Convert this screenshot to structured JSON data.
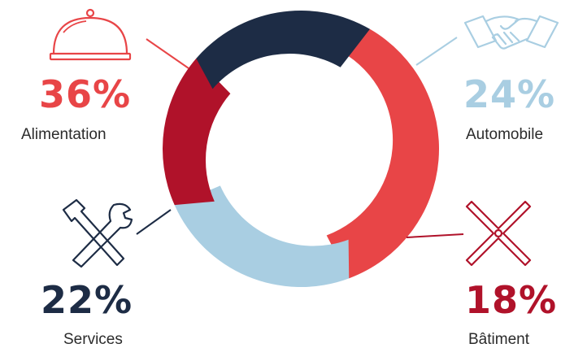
{
  "chart_data": {
    "type": "pie",
    "variant": "donut",
    "categories": [
      "Alimentation",
      "Automobile",
      "Bâtiment",
      "Services"
    ],
    "values": [
      36,
      24,
      18,
      22
    ],
    "unit": "%",
    "colors": [
      "#e84547",
      "#a9cee2",
      "#b0122a",
      "#1d2c45"
    ],
    "labels": [
      {
        "name": "Alimentation",
        "value_text": "36%",
        "color": "#e84547",
        "icon": "cloche-icon"
      },
      {
        "name": "Automobile",
        "value_text": "24%",
        "color": "#a9cee2",
        "icon": "handshake-icon"
      },
      {
        "name": "Bâtiment",
        "value_text": "18%",
        "color": "#b0122a",
        "icon": "cross-wrench-icon"
      },
      {
        "name": "Services",
        "value_text": "22%",
        "color": "#1d2c45",
        "icon": "hammer-wrench-icon"
      }
    ]
  }
}
